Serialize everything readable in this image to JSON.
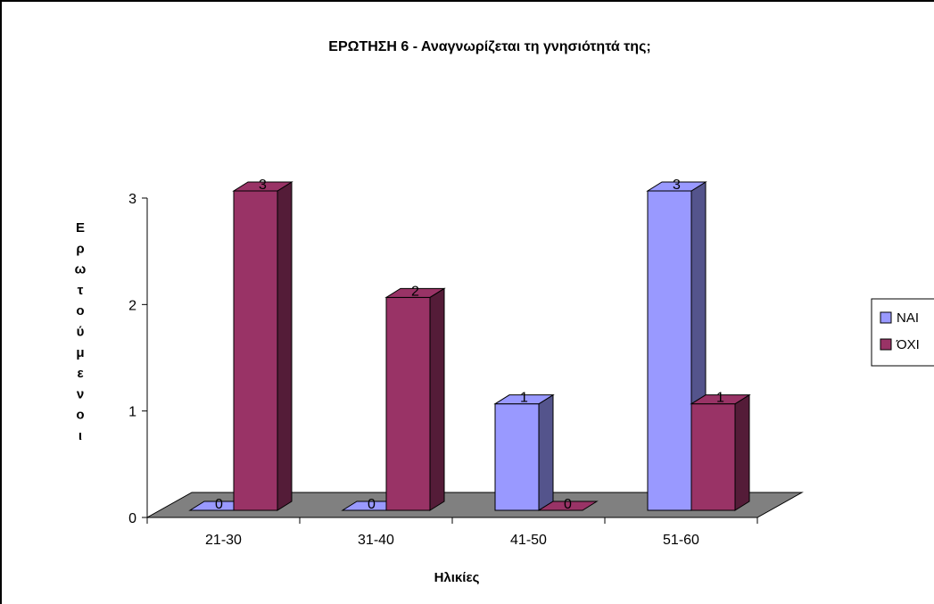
{
  "chart_data": {
    "type": "bar",
    "style": "3d-clustered-column",
    "title": "ΕΡΩΤΗΣΗ 6 - Αναγνωρίζεται τη γνησιότητά της;",
    "xlabel": "Ηλικίες",
    "ylabel": "Ερωτούμενοι",
    "categories": [
      "21-30",
      "31-40",
      "41-50",
      "51-60"
    ],
    "series": [
      {
        "name": "ΝΑΙ",
        "values": [
          0,
          0,
          1,
          3
        ],
        "color": "#9999ff"
      },
      {
        "name": "ΌΧΙ",
        "values": [
          3,
          2,
          0,
          1
        ],
        "color": "#993366"
      }
    ],
    "ylim": [
      0,
      3
    ],
    "yticks": [
      0,
      1,
      2,
      3
    ],
    "floor_color": "#808080",
    "legend_position": "right",
    "data_labels": true,
    "grid": false
  }
}
